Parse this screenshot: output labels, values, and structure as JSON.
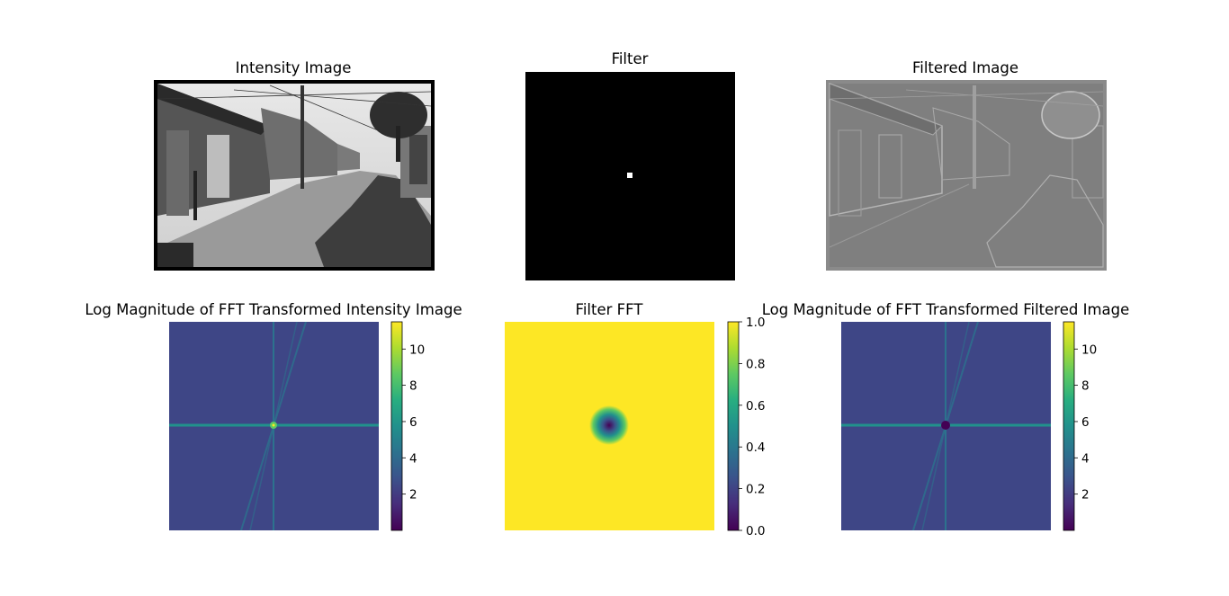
{
  "chart_data": [
    {
      "type": "image",
      "title": "Intensity Image",
      "axes": "off"
    },
    {
      "type": "image",
      "title": "Filter",
      "axes": "off"
    },
    {
      "type": "image",
      "title": "Filtered Image",
      "axes": "off"
    },
    {
      "type": "heatmap",
      "title": "Log Magnitude of FFT Transformed Intensity Image",
      "colormap": "viridis",
      "colorbar": {
        "range": [
          0,
          11.5
        ],
        "ticks": [
          2,
          4,
          6,
          8,
          10
        ],
        "tick_labels": [
          "2",
          "4",
          "6",
          "8",
          "10"
        ]
      }
    },
    {
      "type": "heatmap",
      "title": "Filter FFT",
      "colormap": "viridis",
      "colorbar": {
        "range": [
          0.0,
          1.0
        ],
        "ticks": [
          0.0,
          0.2,
          0.4,
          0.6,
          0.8,
          1.0
        ],
        "tick_labels": [
          "0.0",
          "0.2",
          "0.4",
          "0.6",
          "0.8",
          "1.0"
        ]
      }
    },
    {
      "type": "heatmap",
      "title": "Log Magnitude of FFT Transformed Filtered Image",
      "colormap": "viridis",
      "colorbar": {
        "range": [
          0,
          11.5
        ],
        "ticks": [
          2,
          4,
          6,
          8,
          10
        ],
        "tick_labels": [
          "2",
          "4",
          "6",
          "8",
          "10"
        ]
      }
    }
  ]
}
